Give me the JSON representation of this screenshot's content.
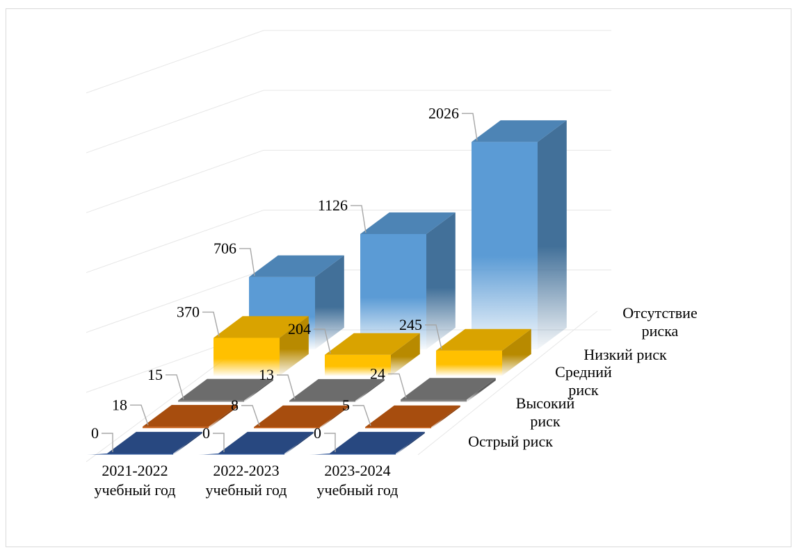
{
  "chart_data": {
    "type": "bar",
    "categories": [
      "2021-2022\nучебный год",
      "2022-2023\nучебный год",
      "2023-2024\nучебный год"
    ],
    "series": [
      {
        "name": "Острый риск",
        "values": [
          0,
          0,
          0
        ],
        "color": "#2F5597"
      },
      {
        "name": "Высокий\nриск",
        "values": [
          18,
          8,
          5
        ],
        "color": "#C55A11"
      },
      {
        "name": "Средний\nриск",
        "values": [
          15,
          13,
          24
        ],
        "color": "#7F7F7F"
      },
      {
        "name": "Низкий риск",
        "values": [
          370,
          204,
          245
        ],
        "color": "#FFC000"
      },
      {
        "name": "Отсутствие\nриска",
        "values": [
          706,
          1126,
          2026
        ],
        "color": "#5B9BD5"
      }
    ],
    "data_labels": [
      [
        "0",
        "0",
        "0"
      ],
      [
        "18",
        "8",
        "5"
      ],
      [
        "15",
        "13",
        "24"
      ],
      [
        "370",
        "204",
        "245"
      ],
      [
        "706",
        "1126",
        "2026"
      ]
    ],
    "ylim": [
      0,
      2500
    ],
    "grid": true,
    "legend": "none",
    "projection": "3d-column"
  }
}
